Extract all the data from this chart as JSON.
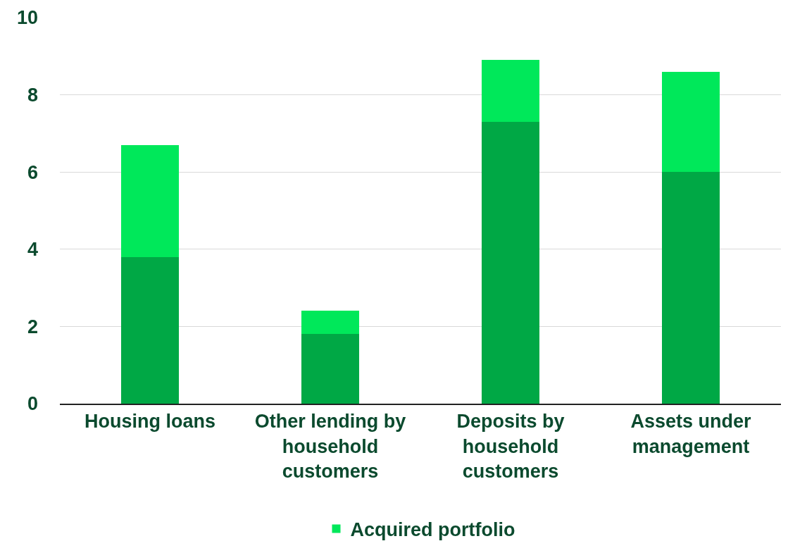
{
  "chart_data": {
    "type": "bar",
    "stacked": true,
    "categories": [
      "Housing loans",
      "Other lending by household customers",
      "Deposits by household customers",
      "Assets under management"
    ],
    "series": [
      {
        "color": "#00a845",
        "values": [
          3.8,
          1.8,
          7.3,
          6.0
        ]
      },
      {
        "name": "Acquired portfolio",
        "color": "#00e85a",
        "values": [
          2.9,
          0.6,
          1.6,
          2.6
        ]
      }
    ],
    "ylim": [
      0,
      10
    ],
    "yticks": [
      0,
      2,
      4,
      6,
      8,
      10
    ],
    "grid": "y",
    "legend": "bottom"
  }
}
